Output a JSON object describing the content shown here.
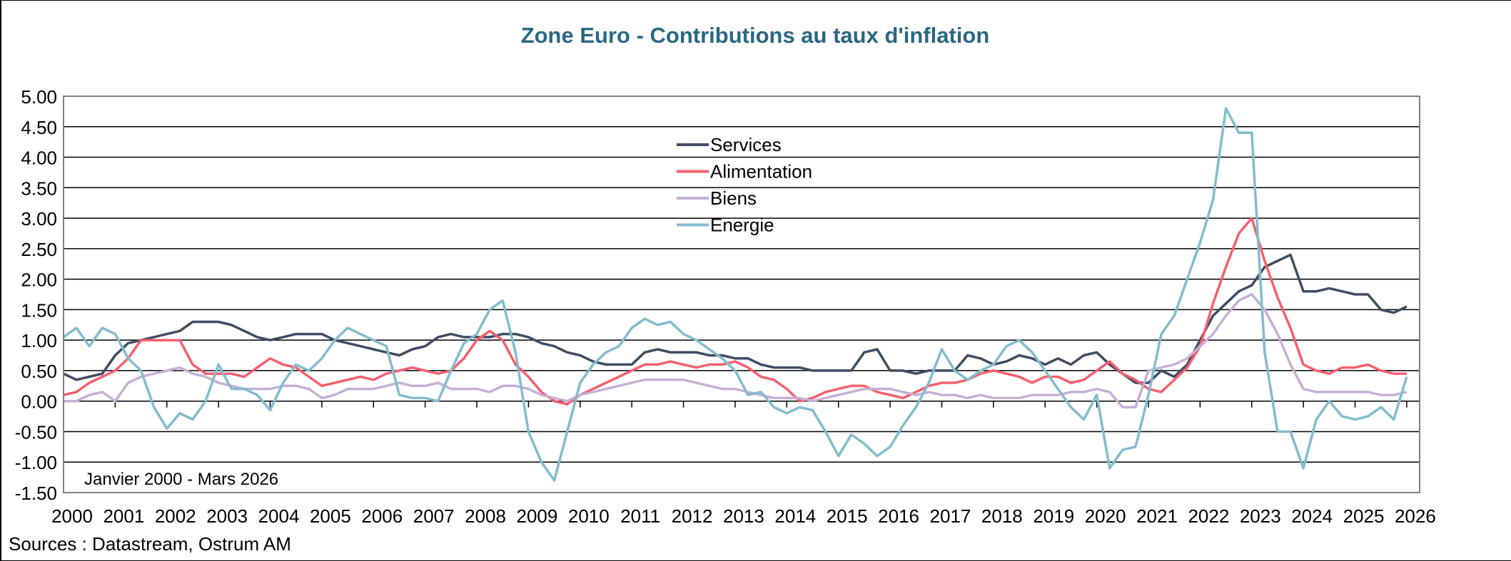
{
  "chart_data": {
    "type": "line",
    "title": "Zone Euro - Contributions au taux d'inflation",
    "annotation": "Janvier 2000 - Mars 2026",
    "source": "Sources : Datastream, Ostrum AM",
    "xlabel": "",
    "ylabel": "",
    "ylim": [
      -1.5,
      5.0
    ],
    "yticks": [
      "5.00",
      "4.50",
      "4.00",
      "3.50",
      "3.00",
      "2.50",
      "2.00",
      "1.50",
      "1.00",
      "0.50",
      "0.00",
      "-0.50",
      "-1.00",
      "-1.50"
    ],
    "xticks": [
      "2000",
      "2001",
      "2002",
      "2003",
      "2004",
      "2005",
      "2006",
      "2007",
      "2008",
      "2009",
      "2010",
      "2011",
      "2012",
      "2013",
      "2014",
      "2015",
      "2016",
      "2017",
      "2018",
      "2019",
      "2020",
      "2021",
      "2022",
      "2023",
      "2024",
      "2025",
      "2026"
    ],
    "xlim": [
      "2000-01",
      "2026-03"
    ],
    "grid": true,
    "legend_position": "top-center",
    "x_frequency": "quarterly (approximate reading)",
    "x_start": "2000-01",
    "series": [
      {
        "name": "Services",
        "color": "#3f4d63",
        "values": [
          0.45,
          0.35,
          0.4,
          0.45,
          0.75,
          0.95,
          1.0,
          1.05,
          1.1,
          1.15,
          1.3,
          1.3,
          1.3,
          1.25,
          1.15,
          1.05,
          1.0,
          1.05,
          1.1,
          1.1,
          1.1,
          1.0,
          0.95,
          0.9,
          0.85,
          0.8,
          0.75,
          0.85,
          0.9,
          1.05,
          1.1,
          1.05,
          1.05,
          1.05,
          1.1,
          1.1,
          1.05,
          0.95,
          0.9,
          0.8,
          0.75,
          0.65,
          0.6,
          0.6,
          0.6,
          0.8,
          0.85,
          0.8,
          0.8,
          0.8,
          0.75,
          0.75,
          0.7,
          0.7,
          0.6,
          0.55,
          0.55,
          0.55,
          0.5,
          0.5,
          0.5,
          0.5,
          0.8,
          0.85,
          0.5,
          0.5,
          0.45,
          0.5,
          0.5,
          0.5,
          0.75,
          0.7,
          0.6,
          0.65,
          0.75,
          0.7,
          0.6,
          0.7,
          0.6,
          0.75,
          0.8,
          0.6,
          0.45,
          0.3,
          0.3,
          0.5,
          0.4,
          0.6,
          1.0,
          1.4,
          1.6,
          1.8,
          1.9,
          2.2,
          2.3,
          2.4,
          1.8,
          1.8,
          1.85,
          1.8,
          1.75,
          1.75,
          1.5,
          1.45,
          1.55
        ]
      },
      {
        "name": "Alimentation",
        "color": "#f4606f",
        "values": [
          0.1,
          0.15,
          0.3,
          0.4,
          0.5,
          0.7,
          1.0,
          1.0,
          1.0,
          1.0,
          0.6,
          0.45,
          0.45,
          0.45,
          0.4,
          0.55,
          0.7,
          0.6,
          0.55,
          0.4,
          0.25,
          0.3,
          0.35,
          0.4,
          0.35,
          0.45,
          0.5,
          0.55,
          0.5,
          0.45,
          0.5,
          0.7,
          1.0,
          1.15,
          1.0,
          0.6,
          0.4,
          0.15,
          0.0,
          -0.05,
          0.1,
          0.2,
          0.3,
          0.4,
          0.5,
          0.6,
          0.6,
          0.65,
          0.6,
          0.55,
          0.6,
          0.6,
          0.65,
          0.55,
          0.4,
          0.35,
          0.2,
          0.0,
          0.05,
          0.15,
          0.2,
          0.25,
          0.25,
          0.15,
          0.1,
          0.05,
          0.15,
          0.25,
          0.3,
          0.3,
          0.35,
          0.45,
          0.5,
          0.45,
          0.4,
          0.3,
          0.4,
          0.4,
          0.3,
          0.35,
          0.5,
          0.65,
          0.45,
          0.35,
          0.2,
          0.15,
          0.35,
          0.55,
          0.9,
          1.6,
          2.2,
          2.75,
          3.0,
          2.3,
          1.7,
          1.2,
          0.6,
          0.5,
          0.45,
          0.55,
          0.55,
          0.6,
          0.5,
          0.45,
          0.45
        ]
      },
      {
        "name": "Biens",
        "color": "#c6afd4",
        "values": [
          0.0,
          0.0,
          0.1,
          0.15,
          0.0,
          0.3,
          0.4,
          0.45,
          0.5,
          0.55,
          0.45,
          0.4,
          0.3,
          0.25,
          0.2,
          0.2,
          0.2,
          0.25,
          0.25,
          0.2,
          0.05,
          0.1,
          0.2,
          0.2,
          0.2,
          0.25,
          0.3,
          0.25,
          0.25,
          0.3,
          0.2,
          0.2,
          0.2,
          0.15,
          0.25,
          0.25,
          0.2,
          0.1,
          0.05,
          0.0,
          0.1,
          0.15,
          0.2,
          0.25,
          0.3,
          0.35,
          0.35,
          0.35,
          0.35,
          0.3,
          0.25,
          0.2,
          0.2,
          0.15,
          0.1,
          0.05,
          0.05,
          0.05,
          0.0,
          0.05,
          0.1,
          0.15,
          0.2,
          0.2,
          0.2,
          0.15,
          0.1,
          0.15,
          0.1,
          0.1,
          0.05,
          0.1,
          0.05,
          0.05,
          0.05,
          0.1,
          0.1,
          0.1,
          0.15,
          0.15,
          0.2,
          0.15,
          -0.1,
          -0.1,
          0.5,
          0.55,
          0.6,
          0.7,
          0.9,
          1.1,
          1.4,
          1.65,
          1.75,
          1.5,
          1.1,
          0.6,
          0.2,
          0.15,
          0.15,
          0.15,
          0.15,
          0.15,
          0.1,
          0.1,
          0.15
        ]
      },
      {
        "name": "Energie",
        "color": "#82bccd",
        "values": [
          1.05,
          1.2,
          0.9,
          1.2,
          1.1,
          0.7,
          0.5,
          -0.1,
          -0.45,
          -0.2,
          -0.3,
          0.0,
          0.6,
          0.2,
          0.2,
          0.1,
          -0.15,
          0.3,
          0.6,
          0.5,
          0.7,
          1.0,
          1.2,
          1.1,
          1.0,
          0.9,
          0.1,
          0.05,
          0.05,
          0.0,
          0.5,
          0.95,
          1.1,
          1.5,
          1.65,
          0.8,
          -0.5,
          -1.0,
          -1.3,
          -0.5,
          0.3,
          0.6,
          0.8,
          0.9,
          1.2,
          1.35,
          1.25,
          1.3,
          1.1,
          1.0,
          0.85,
          0.7,
          0.5,
          0.1,
          0.15,
          -0.1,
          -0.2,
          -0.1,
          -0.15,
          -0.5,
          -0.9,
          -0.55,
          -0.7,
          -0.9,
          -0.75,
          -0.4,
          -0.1,
          0.3,
          0.85,
          0.5,
          0.35,
          0.5,
          0.6,
          0.9,
          1.0,
          0.8,
          0.5,
          0.2,
          -0.1,
          -0.3,
          0.1,
          -1.1,
          -0.8,
          -0.75,
          0.1,
          1.1,
          1.4,
          2.0,
          2.6,
          3.3,
          4.8,
          4.4,
          4.4,
          0.8,
          -0.5,
          -0.5,
          -1.1,
          -0.3,
          0.0,
          -0.25,
          -0.3,
          -0.25,
          -0.1,
          -0.3,
          0.4
        ]
      }
    ]
  }
}
